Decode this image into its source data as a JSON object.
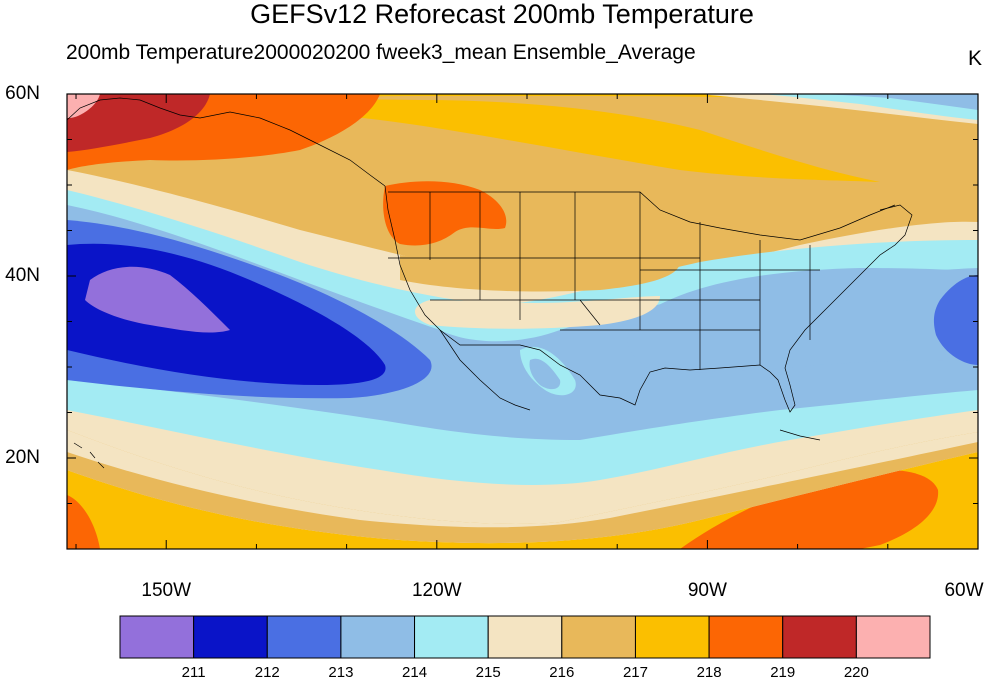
{
  "title": "GEFSv12 Reforecast 200mb Temperature",
  "subtitle": "200mb Temperature2000020200 fweek3_mean Ensemble_Average",
  "units": "K",
  "map": {
    "projection": "cylindrical equidistant",
    "lon_range": [
      -161,
      -60
    ],
    "lat_range": [
      10,
      60
    ],
    "lat_ticks": [
      {
        "value": 60,
        "label": "60N"
      },
      {
        "value": 40,
        "label": "40N"
      },
      {
        "value": 20,
        "label": "20N"
      }
    ],
    "lon_ticks": [
      {
        "value": -150,
        "label": "150W"
      },
      {
        "value": -120,
        "label": "120W"
      },
      {
        "value": -90,
        "label": "90W"
      },
      {
        "value": -60,
        "label": "60W"
      }
    ]
  },
  "colorbar": {
    "colors": [
      "#9370db",
      "#0a14c8",
      "#4a6fe3",
      "#8fbde6",
      "#a3ebf3",
      "#f4e4c2",
      "#e8b85a",
      "#fbbf00",
      "#fc6604",
      "#bf2828",
      "#fcb0b0"
    ],
    "levels": [
      "211",
      "212",
      "213",
      "214",
      "215",
      "216",
      "217",
      "218",
      "219",
      "220"
    ]
  }
}
